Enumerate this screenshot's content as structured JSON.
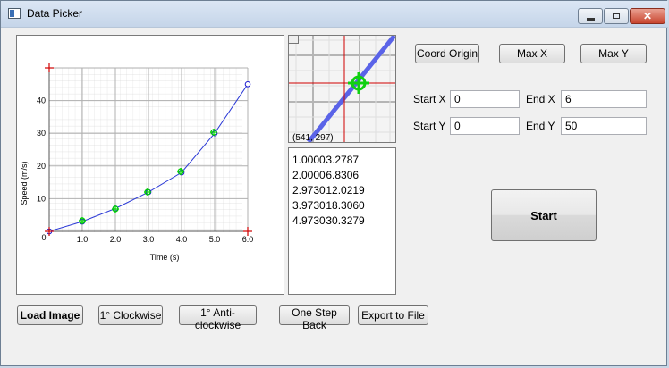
{
  "window": {
    "title": "Data Picker",
    "close_glyph": "✕"
  },
  "toolbar": {
    "load_image": "Load Image",
    "rotate_cw": "1° Clockwise",
    "rotate_ccw": "1° Anti-clockwise",
    "step_back": "One Step Back",
    "export": "Export to File"
  },
  "controls": {
    "coord_origin": "Coord Origin",
    "max_x": "Max X",
    "max_y": "Max Y",
    "start_x_label": "Start X",
    "start_x_value": "0",
    "end_x_label": "End X",
    "end_x_value": "6",
    "start_y_label": "Start Y",
    "start_y_value": "0",
    "end_y_label": "End Y",
    "end_y_value": "50",
    "start": "Start"
  },
  "zoom": {
    "coord_readout": "(541, 297)"
  },
  "picked_points": [
    {
      "x": "1.0000",
      "y": "3.2787"
    },
    {
      "x": "2.0000",
      "y": "6.8306"
    },
    {
      "x": "2.9730",
      "y": "12.0219"
    },
    {
      "x": "3.9730",
      "y": "18.3060"
    },
    {
      "x": "4.9730",
      "y": "30.3279"
    }
  ],
  "chart_data": {
    "type": "line",
    "xlabel": "Time (s)",
    "ylabel": "Speed (m/s)",
    "x_ticks": [
      "1.0",
      "2.0",
      "3.0",
      "4.0",
      "5.0",
      "6.0"
    ],
    "y_ticks": [
      "10",
      "20",
      "30",
      "40"
    ],
    "origin_label": "0",
    "xlim": [
      0,
      6
    ],
    "ylim": [
      0,
      50
    ],
    "series": [
      {
        "x": [
          0,
          1,
          2,
          3,
          4,
          5,
          6
        ],
        "y": [
          0,
          3,
          7,
          12,
          18,
          30,
          45
        ]
      }
    ],
    "picked": {
      "x": [
        1,
        2,
        2.973,
        3.973,
        4.973
      ],
      "y": [
        3.2787,
        6.8306,
        12.0219,
        18.306,
        30.3279
      ]
    },
    "calibration_marks": {
      "x": [
        0,
        6,
        0
      ],
      "y": [
        50,
        0,
        0
      ]
    },
    "colors": {
      "line": "#2b39d6",
      "point_edge": "#1a1ad0",
      "point_fill": "#00d000",
      "marker": "#d00000"
    }
  }
}
